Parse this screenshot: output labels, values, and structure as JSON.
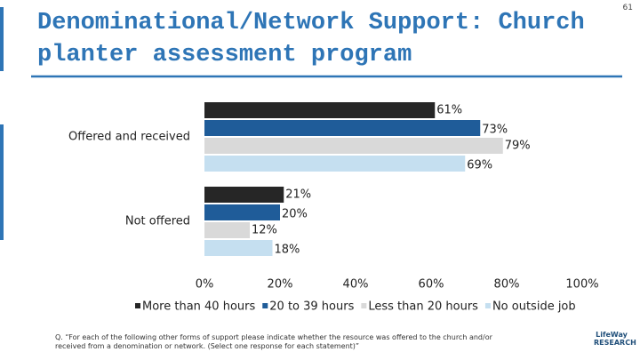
{
  "page_number": "61",
  "footnote": "Q. “For each of the following other forms of support please indicate whether the resource was offered to the church and/or received from a denomination or network. (Select one response for each statement)”",
  "logo": "LifeWay RESEARCH",
  "chart_data": {
    "type": "hbar",
    "title": "Denominational/Network Support: Church planter assessment program",
    "categories": [
      "Offered and received",
      "Not offered"
    ],
    "series": [
      {
        "name": "More than 40 hours",
        "color": "#262626",
        "values": [
          61,
          21
        ],
        "value_labels": [
          "61%",
          "21%"
        ]
      },
      {
        "name": "20 to 39 hours",
        "color": "#1f5c99",
        "values": [
          73,
          20
        ],
        "value_labels": [
          "73%",
          "20%"
        ]
      },
      {
        "name": "Less than 20 hours",
        "color": "#d9d9d9",
        "values": [
          79,
          12
        ],
        "value_labels": [
          "79%",
          "12%"
        ]
      },
      {
        "name": "No outside job",
        "color": "#c5dff0",
        "values": [
          69,
          18
        ],
        "value_labels": [
          "69%",
          "18%"
        ]
      }
    ],
    "xlim": [
      0,
      100
    ],
    "xticks": [
      {
        "value": 0,
        "label": "0%"
      },
      {
        "value": 20,
        "label": "20%"
      },
      {
        "value": 40,
        "label": "40%"
      },
      {
        "value": 60,
        "label": "60%"
      },
      {
        "value": 80,
        "label": "80%"
      },
      {
        "value": 100,
        "label": "100%"
      }
    ],
    "legend": "bottom"
  }
}
